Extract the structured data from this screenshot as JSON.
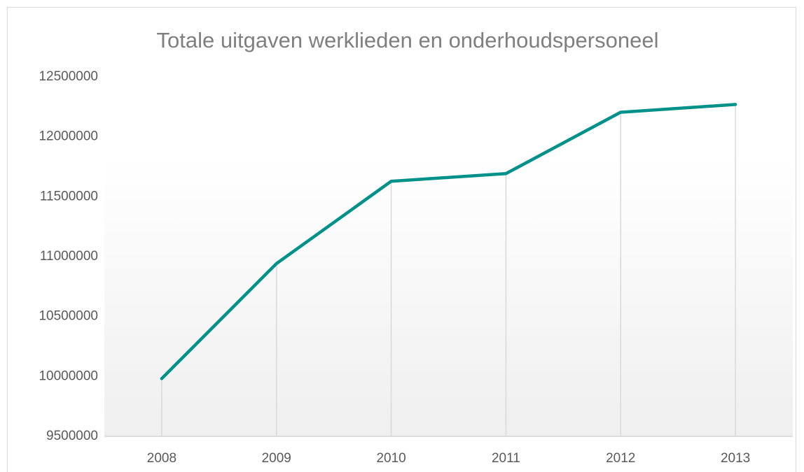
{
  "chart_data": {
    "type": "line",
    "title": "Totale uitgaven werklieden en onderhoudspersoneel",
    "categories": [
      "2008",
      "2009",
      "2010",
      "2011",
      "2012",
      "2013"
    ],
    "values": [
      9982000,
      10942000,
      11629000,
      11693000,
      12205000,
      12270000
    ],
    "color": "#00918a",
    "ylim": [
      9500000,
      12500000
    ],
    "yticks": [
      9500000,
      10000000,
      10500000,
      11000000,
      11500000,
      12000000,
      12500000
    ],
    "grid": false,
    "drop_lines": true
  }
}
